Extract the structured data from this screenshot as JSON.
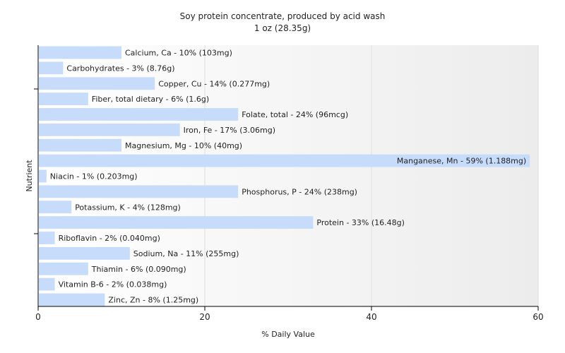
{
  "chart_data": {
    "type": "bar",
    "orientation": "horizontal",
    "title": "Soy protein concentrate, produced by acid wash",
    "subtitle": "1 oz (28.35g)",
    "xlabel": "% Daily Value",
    "ylabel": "Nutrient",
    "xlim": [
      0,
      60
    ],
    "xticks": [
      0,
      20,
      40,
      60
    ],
    "grid": true,
    "bar_color": "#c6dcfa",
    "categories": [
      "Calcium, Ca",
      "Carbohydrates",
      "Copper, Cu",
      "Fiber, total dietary",
      "Folate, total",
      "Iron, Fe",
      "Magnesium, Mg",
      "Manganese, Mn",
      "Niacin",
      "Phosphorus, P",
      "Potassium, K",
      "Protein",
      "Riboflavin",
      "Sodium, Na",
      "Thiamin",
      "Vitamin B-6",
      "Zinc, Zn"
    ],
    "values": [
      10,
      3,
      14,
      6,
      24,
      17,
      10,
      59,
      1,
      24,
      4,
      33,
      2,
      11,
      6,
      2,
      8
    ],
    "labels": [
      "Calcium, Ca - 10% (103mg)",
      "Carbohydrates - 3% (8.76g)",
      "Copper, Cu - 14% (0.277mg)",
      "Fiber, total dietary - 6% (1.6g)",
      "Folate, total - 24% (96mcg)",
      "Iron, Fe - 17% (3.06mg)",
      "Magnesium, Mg - 10% (40mg)",
      "Manganese, Mn - 59% (1.188mg)",
      "Niacin - 1% (0.203mg)",
      "Phosphorus, P - 24% (238mg)",
      "Potassium, K - 4% (128mg)",
      "Protein - 33% (16.48g)",
      "Riboflavin - 2% (0.040mg)",
      "Sodium, Na - 11% (255mg)",
      "Thiamin - 6% (0.090mg)",
      "Vitamin B-6 - 2% (0.038mg)",
      "Zinc, Zn - 8% (1.25mg)"
    ]
  }
}
